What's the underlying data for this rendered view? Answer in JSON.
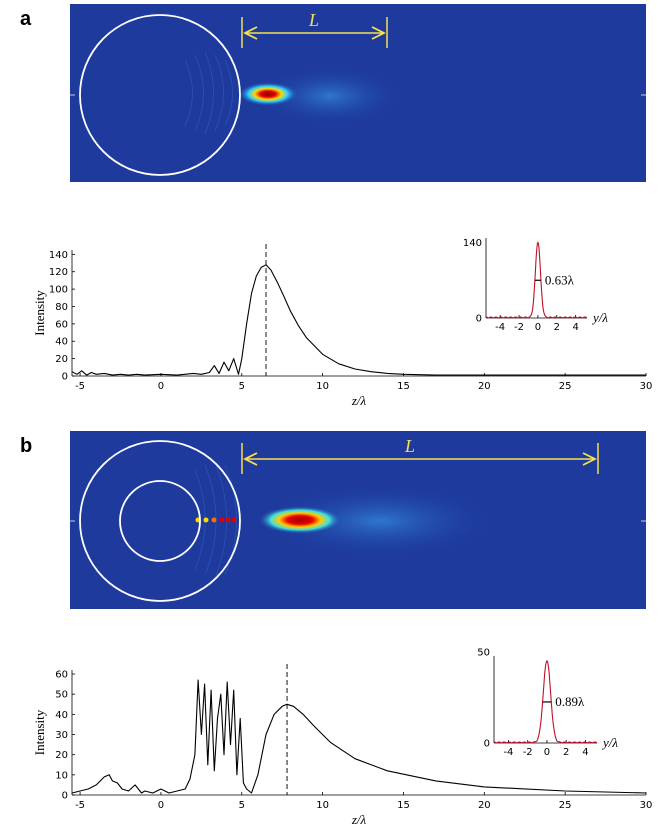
{
  "panels": [
    {
      "label": "a",
      "L_label": "L"
    },
    {
      "label": "b",
      "L_label": "L"
    }
  ],
  "chart_data": [
    {
      "type": "line",
      "panel": "a",
      "ylabel": "Intensity",
      "xlabel": "z/λ",
      "xlim": [
        -5.5,
        30
      ],
      "ylim": [
        0,
        145
      ],
      "xticks": [
        -5,
        0,
        5,
        10,
        15,
        20,
        25,
        30
      ],
      "yticks": [
        0,
        20,
        40,
        60,
        80,
        100,
        120,
        140
      ],
      "peak": {
        "x": 6.5,
        "y": 128
      },
      "series": [
        {
          "x": [
            -5.5,
            -5.2,
            -4.9,
            -4.6,
            -4.3,
            -4,
            -3.5,
            -3,
            -2.5,
            -2,
            -1.5,
            -1,
            0,
            1,
            2,
            2.5,
            3,
            3.3,
            3.6,
            3.9,
            4.2,
            4.5,
            4.8,
            5,
            5.3,
            5.6,
            5.9,
            6.2,
            6.5,
            6.8,
            7.2,
            7.6,
            8,
            8.5,
            9,
            10,
            11,
            12,
            13,
            14,
            15,
            17,
            20,
            25,
            30
          ],
          "y": [
            5,
            2,
            6,
            1,
            4,
            2,
            3,
            1,
            2,
            1,
            2,
            1,
            2,
            1,
            3,
            2,
            4,
            12,
            3,
            16,
            6,
            20,
            2,
            20,
            60,
            95,
            115,
            125,
            128,
            122,
            108,
            92,
            75,
            58,
            44,
            25,
            14,
            8,
            5,
            3,
            2,
            1,
            1,
            1,
            1
          ]
        }
      ],
      "inset": {
        "ylabel_ticks": [
          0,
          140
        ],
        "xticks": [
          -4,
          -2,
          0,
          2,
          4
        ],
        "xlabel": "y/λ",
        "fwhm_label": "0.63λ",
        "peak": 140
      }
    },
    {
      "type": "line",
      "panel": "b",
      "ylabel": "Intensity",
      "xlabel": "z/λ",
      "xlim": [
        -5.5,
        30
      ],
      "ylim": [
        0,
        62
      ],
      "xticks": [
        -5,
        0,
        5,
        10,
        15,
        20,
        25,
        30
      ],
      "yticks": [
        0,
        10,
        20,
        30,
        40,
        50,
        60
      ],
      "peak": {
        "x": 7.8,
        "y": 45
      },
      "series": [
        {
          "x": [
            -5.5,
            -5,
            -4.5,
            -4,
            -3.5,
            -3.2,
            -3,
            -2.7,
            -2.4,
            -2,
            -1.6,
            -1.2,
            -1,
            -0.5,
            0,
            0.5,
            1,
            1.5,
            1.8,
            2.1,
            2.3,
            2.5,
            2.7,
            2.9,
            3.1,
            3.3,
            3.5,
            3.7,
            3.9,
            4.1,
            4.3,
            4.5,
            4.7,
            4.9,
            5.1,
            5.3,
            5.6,
            6,
            6.5,
            7,
            7.5,
            7.8,
            8.2,
            8.8,
            9.5,
            10.5,
            12,
            14,
            17,
            20,
            25,
            30
          ],
          "y": [
            1,
            2,
            3,
            5,
            9,
            10,
            7,
            6,
            3,
            2,
            5,
            1,
            2,
            1,
            3,
            1,
            2,
            3,
            8,
            20,
            57,
            30,
            55,
            15,
            52,
            12,
            38,
            50,
            20,
            56,
            25,
            52,
            10,
            38,
            6,
            3,
            1,
            10,
            30,
            40,
            44,
            45,
            44,
            40,
            34,
            26,
            18,
            12,
            7,
            4,
            2,
            1
          ]
        }
      ],
      "inset": {
        "ylabel_ticks": [
          0,
          50
        ],
        "xticks": [
          -4,
          -2,
          0,
          2,
          4
        ],
        "xlabel": "y/λ",
        "fwhm_label": "0.89λ",
        "peak": 45
      }
    }
  ]
}
